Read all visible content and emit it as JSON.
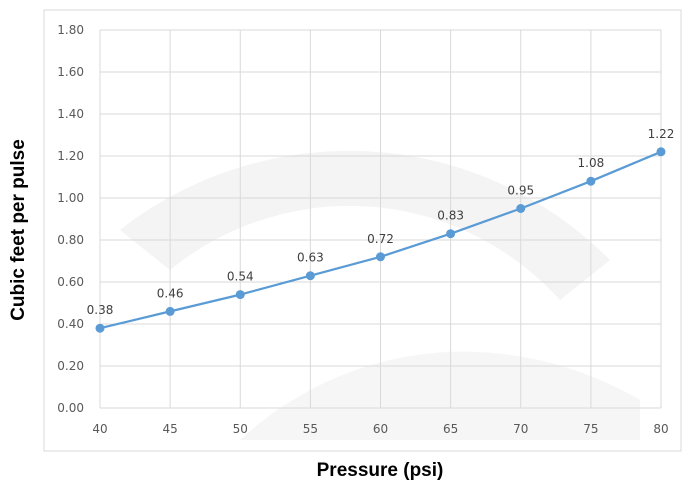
{
  "chart_data": {
    "type": "line",
    "title": "",
    "xlabel": "Pressure (psi)",
    "ylabel": "Cubic feet per pulse",
    "x": [
      40,
      45,
      50,
      55,
      60,
      65,
      70,
      75,
      80
    ],
    "series": [
      {
        "values": [
          0.38,
          0.46,
          0.54,
          0.63,
          0.72,
          0.83,
          0.95,
          1.08,
          1.22
        ],
        "color": "#5b9bd5"
      }
    ],
    "data_labels": [
      "0.38",
      "0.46",
      "0.54",
      "0.63",
      "0.72",
      "0.83",
      "0.95",
      "1.08",
      "1.22"
    ],
    "xlim": [
      40,
      80
    ],
    "ylim": [
      0,
      1.8
    ],
    "x_ticks": [
      "40",
      "45",
      "50",
      "55",
      "60",
      "65",
      "70",
      "75",
      "80"
    ],
    "y_ticks": [
      "0.00",
      "0.20",
      "0.40",
      "0.60",
      "0.80",
      "1.00",
      "1.20",
      "1.40",
      "1.60",
      "1.80"
    ],
    "grid": true,
    "legend": "none"
  }
}
